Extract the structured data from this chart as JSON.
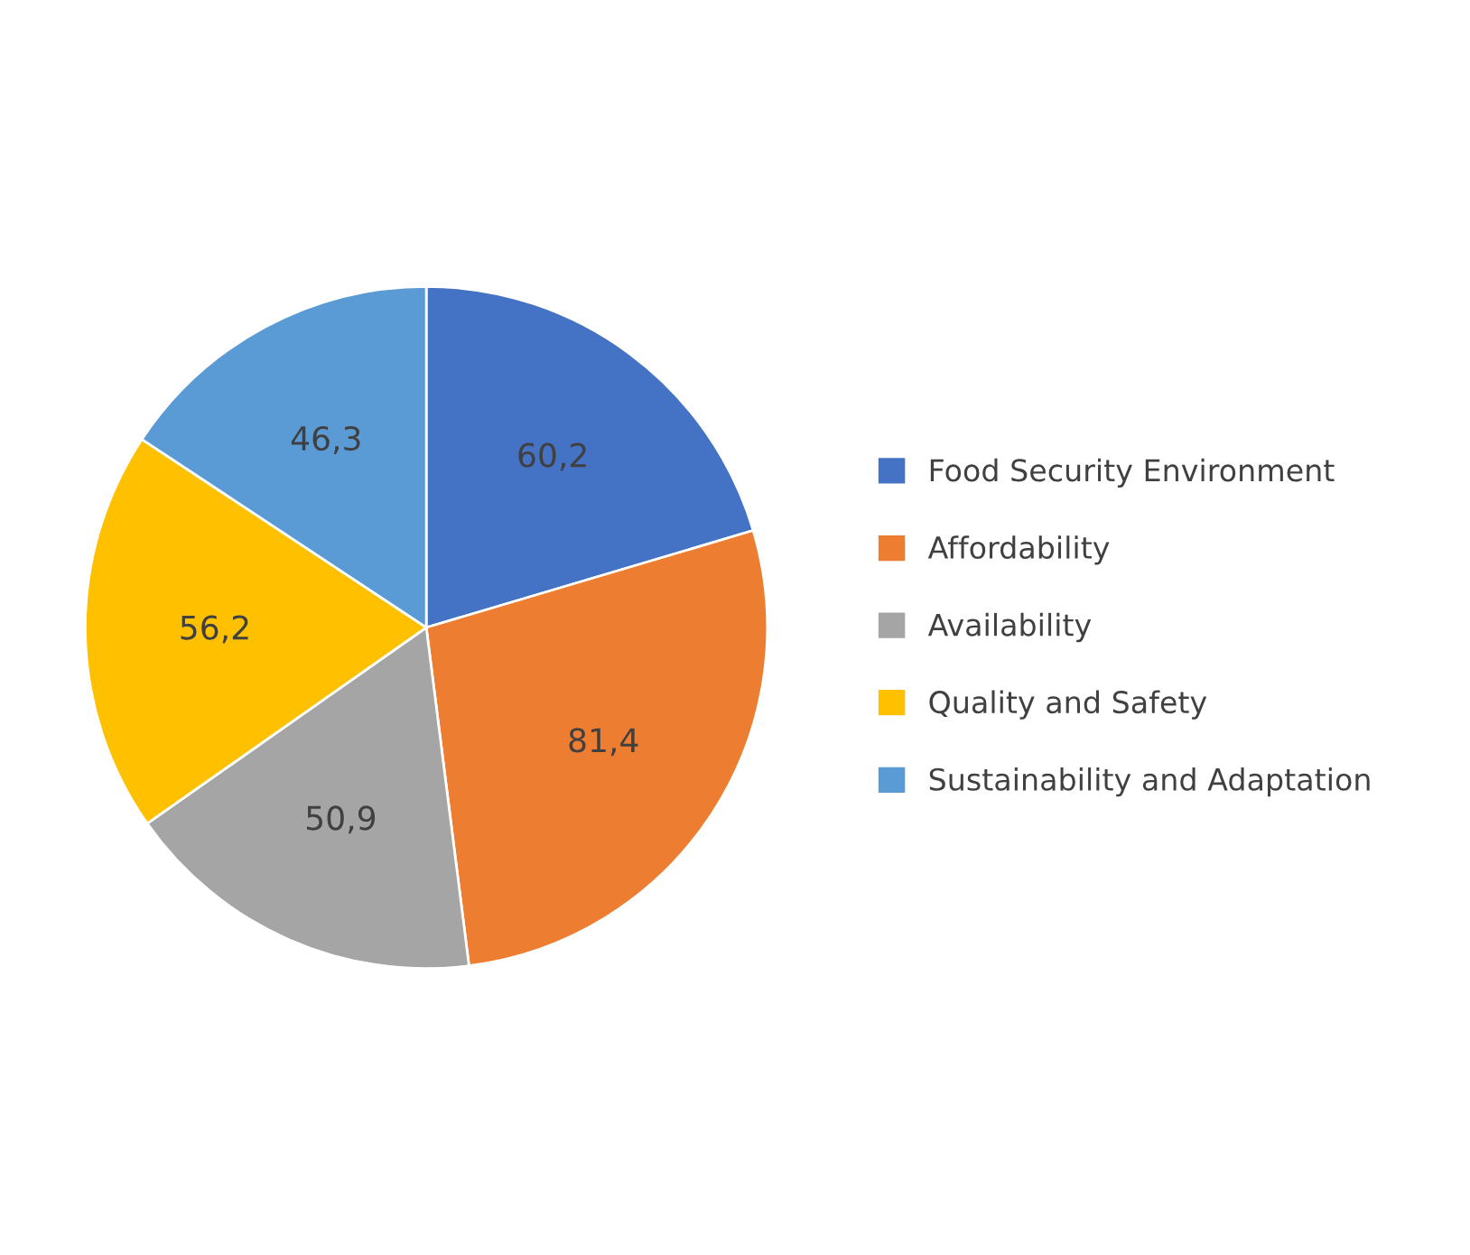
{
  "chart_data": {
    "type": "pie",
    "categories": [
      "Food Security Environment",
      "Affordability",
      "Availability",
      "Quality and Safety",
      "Sustainability and Adaptation"
    ],
    "values": [
      60.2,
      81.4,
      50.9,
      56.2,
      46.3
    ],
    "value_labels": [
      "60,2",
      "81,4",
      "50,9",
      "56,2",
      "46,3"
    ],
    "colors": [
      "#4472c4",
      "#ed7d31",
      "#a5a5a5",
      "#ffc000",
      "#5b9bd5"
    ],
    "legend": "right"
  }
}
